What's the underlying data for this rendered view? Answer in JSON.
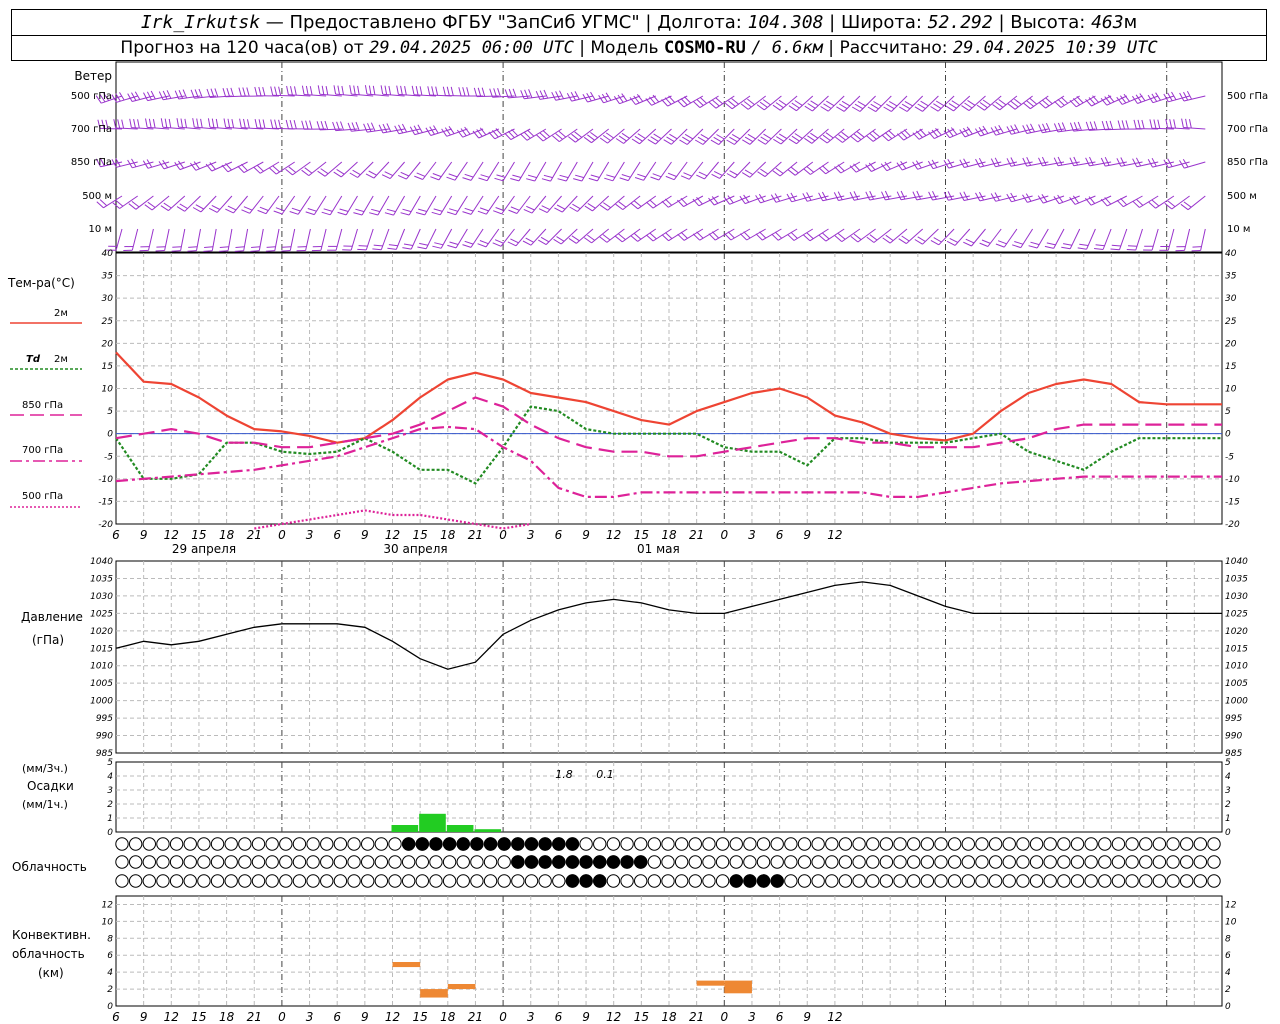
{
  "header": {
    "station": "Irk_Irkutsk",
    "provider": "— Предоставлено ФГБУ \"ЗапСиб УГМС\"",
    "lon_label": "Долгота:",
    "lon": "104.308",
    "lat_label": "Широта:",
    "lat": "52.292",
    "alt_label": "Высота:",
    "alt": "463",
    "alt_unit": "м",
    "forecast_prefix": "Прогноз на 120 часа(ов) от",
    "forecast_start": "29.04.2025 06:00 UTC",
    "model_label": "Модель",
    "model": "COSMO-RU",
    "model_res": "/ 6.6км",
    "calc_label": "Рассчитано:",
    "calc_time": "29.04.2025 10:39 UTC",
    "sep": "|"
  },
  "wind_panel": {
    "title": "Ветер",
    "levels": [
      "500 гПа",
      "700 гПа",
      "850 гПа",
      "500 м",
      "10 м"
    ],
    "color": "#9933cc"
  },
  "temp_panel": {
    "title": "Тем-ра(°C)",
    "legend": [
      {
        "label": "2м",
        "color": "#ee4433"
      },
      {
        "label_bold": "Td",
        "label": "2м",
        "color": "#228b22"
      },
      {
        "label": "850 гПа",
        "color": "#dd2299"
      },
      {
        "label": "700 гПа",
        "color": "#dd2299"
      },
      {
        "label": "500 гПа",
        "color": "#dd2299"
      }
    ],
    "yticks": [
      "40",
      "35",
      "30",
      "25",
      "20",
      "15",
      "10",
      "5",
      "0",
      "-5",
      "-10",
      "-15",
      "-20"
    ]
  },
  "pressure_panel": {
    "title": "Давление",
    "unit": "(гПа)",
    "yticks": [
      "1040",
      "1035",
      "1030",
      "1025",
      "1020",
      "1015",
      "1010",
      "1005",
      "1000",
      "995",
      "990",
      "985"
    ]
  },
  "precip_panel": {
    "unit3": "(мм/3ч.)",
    "title": "Осадки",
    "unit1": "(мм/1ч.)",
    "yticks": [
      "5",
      "4",
      "3",
      "2",
      "1",
      "0"
    ],
    "totals": [
      "1.8",
      "0.1"
    ]
  },
  "cloud_panel": {
    "title": "Облачность"
  },
  "conv_panel": {
    "title1": "Конвективн.",
    "title2": "облачность",
    "unit": "(км)",
    "yticks": [
      "12",
      "10",
      "8",
      "6",
      "4",
      "2",
      "0"
    ]
  },
  "x_axis": {
    "hour_labels": [
      "6",
      "9",
      "12",
      "15",
      "18",
      "21",
      "0",
      "3",
      "6",
      "9",
      "12",
      "15",
      "18",
      "21",
      "0",
      "3",
      "6",
      "9",
      "12",
      "15",
      "18",
      "21",
      "0",
      "3",
      "6",
      "9",
      "12"
    ],
    "day_labels": [
      "29 апреля",
      "30 апреля",
      "01 мая"
    ]
  },
  "chart_data": {
    "type": "line",
    "x_hours_from_start": [
      0,
      3,
      6,
      9,
      12,
      15,
      18,
      21,
      24,
      27,
      30,
      33,
      36,
      39,
      42,
      45,
      48,
      51,
      54,
      57,
      60,
      63,
      66,
      69,
      72,
      75,
      78,
      81,
      84,
      87,
      90,
      93,
      96,
      99,
      102,
      105,
      108,
      111,
      114,
      117,
      120
    ],
    "series": [
      {
        "name": "Т 2м",
        "unit": "°C",
        "values": [
          18,
          11.5,
          11,
          8,
          4,
          1,
          0.5,
          -0.5,
          -2,
          -1,
          3,
          8,
          12,
          13.5,
          12,
          9,
          8,
          7,
          5,
          3,
          2,
          5,
          7,
          9,
          10,
          8,
          4,
          2.5,
          0,
          -1,
          -1.5,
          0,
          5,
          9,
          11,
          12,
          11,
          7,
          6.5,
          6.5,
          6.5
        ]
      },
      {
        "name": "Td 2м",
        "unit": "°C",
        "values": [
          -1,
          -10,
          -10,
          -9,
          -2,
          -2,
          -4,
          -4.5,
          -4,
          -1,
          -4,
          -8,
          -8,
          -11,
          -3,
          6,
          5,
          1,
          0,
          0,
          0,
          0,
          -3,
          -4,
          -4,
          -7,
          -1,
          -1,
          -2,
          -2,
          -2,
          -1,
          0,
          -4,
          -6,
          -8,
          -4,
          -1,
          -1,
          -1,
          -1
        ]
      },
      {
        "name": "Т 850 гПа",
        "unit": "°C",
        "values": [
          -1,
          0,
          1,
          0,
          -2,
          -2,
          -3,
          -3,
          -2,
          -1,
          0,
          2,
          5,
          8,
          6,
          2,
          -1,
          -3,
          -4,
          -4,
          -5,
          -5,
          -4,
          -3,
          -2,
          -1,
          -1,
          -2,
          -2,
          -3,
          -3,
          -3,
          -2,
          -1,
          1,
          2,
          2,
          2,
          2,
          2,
          2
        ]
      },
      {
        "name": "Т 700 гПа",
        "unit": "°C",
        "values": [
          -10.5,
          -10,
          -9.5,
          -9,
          -8.5,
          -8,
          -7,
          -6,
          -5,
          -3,
          -1,
          1,
          1.5,
          1,
          -3,
          -6,
          -12,
          -14,
          -14,
          -13,
          -13,
          -13,
          -13,
          -13,
          -13,
          -13,
          -13,
          -13,
          -14,
          -14,
          -13,
          -12,
          -11,
          -10.5,
          -10,
          -9.5,
          -9.5,
          -9.5,
          -9.5,
          -9.5,
          -9.5
        ]
      },
      {
        "name": "Т 500 гПа",
        "unit": "°C",
        "values": [
          null,
          null,
          null,
          null,
          null,
          -21,
          -20,
          -19,
          -18,
          -17,
          -18,
          -18,
          -19,
          -20,
          -21,
          -20,
          null,
          null,
          null,
          null,
          null,
          null,
          null,
          null,
          null,
          null,
          null,
          null,
          null,
          null,
          null,
          null,
          null,
          null,
          null,
          null,
          null,
          null,
          null,
          null,
          null
        ]
      },
      {
        "name": "Давление",
        "unit": "гПа",
        "values": [
          1015,
          1017,
          1016,
          1017,
          1019,
          1021,
          1022,
          1022,
          1022,
          1021,
          1017,
          1012,
          1009,
          1011,
          1019,
          1023,
          1026,
          1028,
          1029,
          1028,
          1026,
          1025,
          1025,
          1027,
          1029,
          1031,
          1033,
          1034,
          1033,
          1030,
          1027,
          1025,
          1025,
          1025,
          1025,
          1025,
          1025,
          1025,
          1025,
          1025,
          1025
        ]
      }
    ],
    "precipitation_mm_3h": [
      {
        "hour": 30,
        "value": 0.5
      },
      {
        "hour": 33,
        "value": 1.3
      },
      {
        "hour": 36,
        "value": 0.5
      },
      {
        "hour": 39,
        "value": 0.2
      }
    ],
    "convective_cloud_km": [
      {
        "hour_start": 30,
        "hour_end": 33,
        "bottom": 4.6,
        "top": 5.2
      },
      {
        "hour_start": 33,
        "hour_end": 36,
        "bottom": 1.0,
        "top": 2.0
      },
      {
        "hour_start": 36,
        "hour_end": 39,
        "bottom": 2.0,
        "top": 2.6
      },
      {
        "hour_start": 63,
        "hour_end": 66,
        "bottom": 2.4,
        "top": 3.0
      },
      {
        "hour_start": 66,
        "hour_end": 69,
        "bottom": 1.5,
        "top": 3.0
      }
    ],
    "ylim_temp": [
      -20,
      40
    ],
    "ylim_pressure": [
      985,
      1040
    ],
    "ylim_precip": [
      0,
      5
    ],
    "ylim_conv": [
      0,
      13
    ]
  }
}
